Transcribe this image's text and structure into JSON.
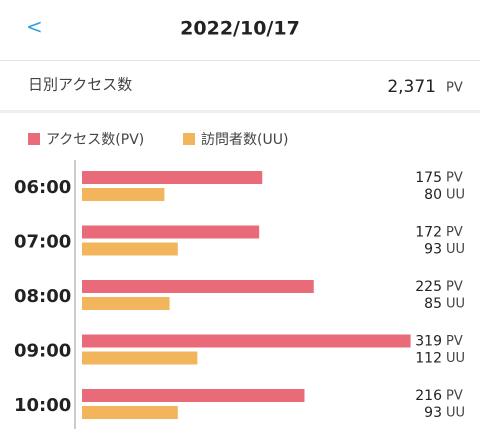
{
  "header": {
    "back": "<",
    "title": "2022/10/17"
  },
  "summary": {
    "label": "日別アクセス数",
    "value": "2,371",
    "unit": "PV"
  },
  "chart_data": {
    "type": "bar",
    "categories": [
      "06:00",
      "07:00",
      "08:00",
      "09:00",
      "10:00"
    ],
    "series": [
      {
        "name": "アクセス数(PV)",
        "unit": "PV",
        "color": "#e96a78",
        "values": [
          175,
          172,
          225,
          319,
          216
        ]
      },
      {
        "name": "訪問者数(UU)",
        "unit": "UU",
        "color": "#f2b55c",
        "values": [
          80,
          93,
          85,
          112,
          93
        ]
      }
    ]
  }
}
